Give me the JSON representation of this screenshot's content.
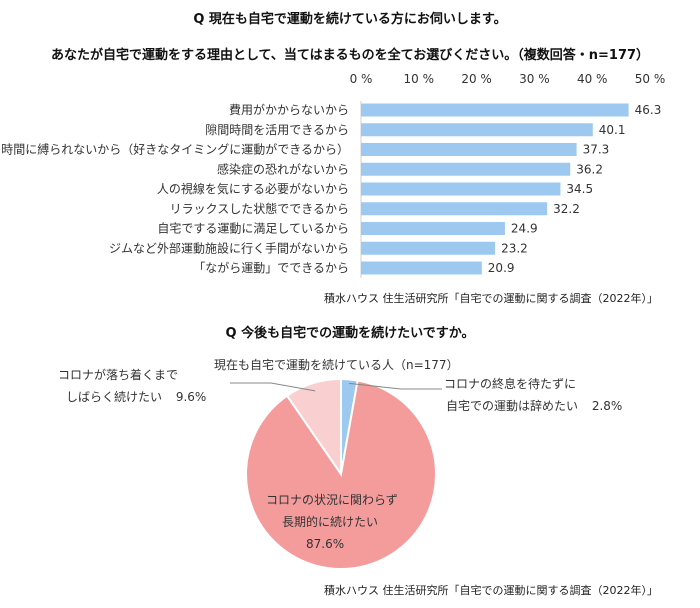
{
  "chart1": {
    "type": "bar",
    "title_line1": "Q 現在も自宅で運動を続けている方にお伺いします。",
    "title_line2": "あなたが自宅で運動をする理由として、当てはまるものを全てお選びください。（複数回答・n=177）",
    "xlim": [
      0,
      50
    ],
    "tick_labels": [
      "0 %",
      "10 %",
      "20 %",
      "30 %",
      "40 %",
      "50 %"
    ],
    "categories": [
      "費用がかからないから",
      "隙間時間を活用できるから",
      "時間に縛られないから（好きなタイミングに運動ができるから）",
      "感染症の恐れがないから",
      "人の視線を気にする必要がないから",
      "リラックスした状態でできるから",
      "自宅でする運動に満足しているから",
      "ジムなど外部運動施設に行く手間がないから",
      "「ながら運動」でできるから"
    ],
    "values": [
      46.3,
      40.1,
      37.3,
      36.2,
      34.5,
      32.2,
      24.9,
      23.2,
      20.9
    ],
    "value_labels": [
      "46.3",
      "40.1",
      "37.3",
      "36.2",
      "34.5",
      "32.2",
      "24.9",
      "23.2",
      "20.9"
    ],
    "bar_color": "#9dc8f0",
    "source": "積水ハウス 住生活研究所「自宅での運動に関する調査（2022年）」"
  },
  "chart2": {
    "type": "pie",
    "title": "Q 今後も自宅での運動を続けたいですか。",
    "subtitle": "現在も自宅で運動を続けている人（n=177）",
    "slices": [
      {
        "name_line1": "コロナの状況に関わらず",
        "name_line2": "長期的に続けたい",
        "value": 87.6,
        "value_label": "87.6%",
        "color": "#f49c9c"
      },
      {
        "name_line1": "コロナが落ち着くまで",
        "name_line2": "しばらく続けたい",
        "value": 9.6,
        "value_label": "9.6%",
        "color": "#f9cfcf"
      },
      {
        "name_line1": "コロナの終息を待たずに",
        "name_line2": "自宅での運動は辞めたい",
        "value": 2.8,
        "value_label": "2.8%",
        "color": "#9dc8f0"
      }
    ],
    "source": "積水ハウス 住生活研究所「自宅での運動に関する調査（2022年）」"
  }
}
